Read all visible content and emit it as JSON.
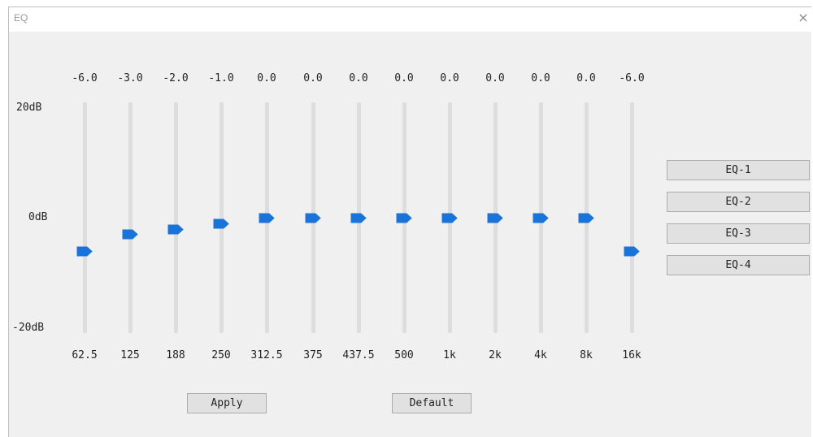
{
  "window": {
    "title": "EQ",
    "close_glyph": "×"
  },
  "scale": {
    "max_label": "20dB",
    "mid_label": "0dB",
    "min_label": "-20dB",
    "range_db": [
      -20,
      20
    ]
  },
  "bands": [
    {
      "freq": "62.5",
      "gain_label": "-6.0",
      "gain": -6.0
    },
    {
      "freq": "125",
      "gain_label": "-3.0",
      "gain": -3.0
    },
    {
      "freq": "188",
      "gain_label": "-2.0",
      "gain": -2.0
    },
    {
      "freq": "250",
      "gain_label": "-1.0",
      "gain": -1.0
    },
    {
      "freq": "312.5",
      "gain_label": "0.0",
      "gain": 0.0
    },
    {
      "freq": "375",
      "gain_label": "0.0",
      "gain": 0.0
    },
    {
      "freq": "437.5",
      "gain_label": "0.0",
      "gain": 0.0
    },
    {
      "freq": "500",
      "gain_label": "0.0",
      "gain": 0.0
    },
    {
      "freq": "1k",
      "gain_label": "0.0",
      "gain": 0.0
    },
    {
      "freq": "2k",
      "gain_label": "0.0",
      "gain": 0.0
    },
    {
      "freq": "4k",
      "gain_label": "0.0",
      "gain": 0.0
    },
    {
      "freq": "8k",
      "gain_label": "0.0",
      "gain": 0.0
    },
    {
      "freq": "16k",
      "gain_label": "-6.0",
      "gain": -6.0
    }
  ],
  "presets": [
    "EQ-1",
    "EQ-2",
    "EQ-3",
    "EQ-4"
  ],
  "actions": {
    "apply_label": "Apply",
    "default_label": "Default"
  },
  "colors": {
    "thumb": "#1a73d9",
    "track": "#dddddd",
    "window_bg": "#f0f0f0"
  },
  "icons": {
    "close": "close-icon",
    "slider_thumb": "slider-thumb-icon"
  }
}
